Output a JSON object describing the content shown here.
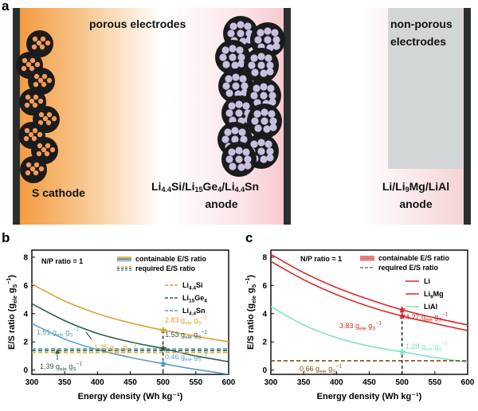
{
  "panel_a": {
    "letter": "a",
    "porous_label": "porous electrodes",
    "nonporous_label_line1": "non-porous",
    "nonporous_label_line2": "electrodes",
    "cathode_label": "S cathode",
    "anode_mid_line2": "anode",
    "anode_right_line1": "Li/Li₉Mg/LiAl",
    "anode_right_line2": "anode",
    "colors": {
      "cathode": "#f5a14a",
      "current_collector": "#2a2e2e",
      "nonporous": "#d3d6d6",
      "particle_cathode": "#f29a5a",
      "particle_anode": "#c9bfe2"
    }
  },
  "panel_b": {
    "letter": "b",
    "np_ratio": "N/P ratio = 1",
    "legend_containable": "containable E/S ratio",
    "legend_required": "required E/S ratio",
    "ylabel": "E/S ratio",
    "xlabel": "Energy density (Wh kg⁻¹)",
    "series_names": [
      "Si",
      "Ge",
      "Sn"
    ],
    "unit": "g",
    "ann": {
      "v283": "2.83 g",
      "v153": "1.53 g",
      "v151": "1.51 g",
      "v125": "1.25 g",
      "v046": "0.46 g",
      "v139": "1.39 g"
    },
    "ann_sub_ele": "ele",
    "ann_mid_gs": " g",
    "ann_sub_s": "S",
    "ann_sup": "−1",
    "x_ticks": [
      "300",
      "350",
      "400",
      "450",
      "500",
      "550",
      "600"
    ],
    "y_ticks": [
      "0",
      "2",
      "4",
      "6",
      "8"
    ]
  },
  "panel_c": {
    "letter": "c",
    "np_ratio": "N/P ratio = 1",
    "legend_containable": "containable E/S ratio",
    "legend_required": "required E/S ratio",
    "legend_li": "Li",
    "legend_limg_a": "Li",
    "legend_limg_b": "9",
    "legend_limg_c": "Mg",
    "legend_lial": "LiAl",
    "ylabel": "E/S ratio",
    "xlabel": "Energy density (Wh kg⁻¹)",
    "ann": {
      "v427": "4.27 g",
      "v383": "3.83 g",
      "v129": "1.29 g",
      "v066": "0.66 g"
    },
    "x_ticks": [
      "300",
      "350",
      "400",
      "450",
      "500",
      "550",
      "600"
    ],
    "y_ticks": [
      "0",
      "2",
      "4",
      "6",
      "8"
    ]
  },
  "chart_data": [
    {
      "type": "line",
      "title": "N/P ratio = 1",
      "xlabel": "Energy density (Wh kg⁻¹)",
      "ylabel": "E/S ratio (g_ele g_S⁻¹)",
      "xlim": [
        300,
        600
      ],
      "ylim": [
        -0.3,
        8.5
      ],
      "x": [
        300,
        350,
        400,
        450,
        500,
        550,
        600
      ],
      "series": [
        {
          "name": "Li4.4Si containable",
          "color": "#d9a232",
          "values": [
            6.1,
            4.9,
            4.0,
            3.35,
            2.83,
            2.4,
            2.0
          ]
        },
        {
          "name": "Li15Ge4 containable",
          "color": "#2f5e45",
          "values": [
            4.7,
            3.5,
            2.6,
            2.0,
            1.53,
            1.0,
            0.6
          ]
        },
        {
          "name": "Li4.4Sn containable",
          "color": "#5aa0c0",
          "values": [
            3.3,
            2.2,
            1.45,
            0.9,
            0.46,
            0.05,
            -0.3
          ]
        },
        {
          "name": "Li4.4Si required",
          "color": "#d9a232",
          "dashed": true,
          "values": [
            1.25,
            1.25,
            1.25,
            1.25,
            1.25,
            1.25,
            1.25
          ]
        },
        {
          "name": "Li15Ge4 required",
          "color": "#2f5e45",
          "dashed": true,
          "values": [
            1.39,
            1.39,
            1.39,
            1.39,
            1.39,
            1.39,
            1.39
          ]
        },
        {
          "name": "Li4.4Sn required",
          "color": "#5aa0c0",
          "dashed": true,
          "values": [
            1.51,
            1.51,
            1.51,
            1.51,
            1.51,
            1.51,
            1.51
          ]
        }
      ],
      "markers": [
        {
          "x": 500,
          "y": 2.83,
          "color": "#d9a232"
        },
        {
          "x": 500,
          "y": 1.53,
          "color": "#2f5e45"
        },
        {
          "x": 500,
          "y": 0.46,
          "color": "#5aa0c0"
        }
      ]
    },
    {
      "type": "line",
      "title": "N/P ratio = 1",
      "xlabel": "Energy density (Wh kg⁻¹)",
      "ylabel": "E/S ratio (g_ele g_S⁻¹)",
      "xlim": [
        300,
        600
      ],
      "ylim": [
        -0.3,
        8.5
      ],
      "x": [
        300,
        350,
        400,
        450,
        500,
        550,
        600
      ],
      "series": [
        {
          "name": "Li containable",
          "color": "#d62a2a",
          "values": [
            8.2,
            6.9,
            5.85,
            5.0,
            4.27,
            3.7,
            3.2
          ]
        },
        {
          "name": "Li9Mg containable",
          "color": "#d62a2a",
          "values": [
            7.7,
            6.4,
            5.35,
            4.5,
            3.83,
            3.3,
            2.8
          ]
        },
        {
          "name": "LiAl containable",
          "color": "#7fe3c7",
          "values": [
            4.5,
            3.2,
            2.3,
            1.7,
            1.29,
            0.9,
            0.55
          ]
        },
        {
          "name": "required",
          "color": "#8a4a10",
          "dashed": true,
          "values": [
            0.66,
            0.66,
            0.66,
            0.66,
            0.66,
            0.66,
            0.66
          ]
        }
      ],
      "markers": [
        {
          "x": 500,
          "y": 4.27,
          "color": "#d62a2a"
        },
        {
          "x": 500,
          "y": 3.83,
          "color": "#d62a2a"
        },
        {
          "x": 500,
          "y": 1.29,
          "color": "#7fe3c7"
        }
      ]
    }
  ]
}
